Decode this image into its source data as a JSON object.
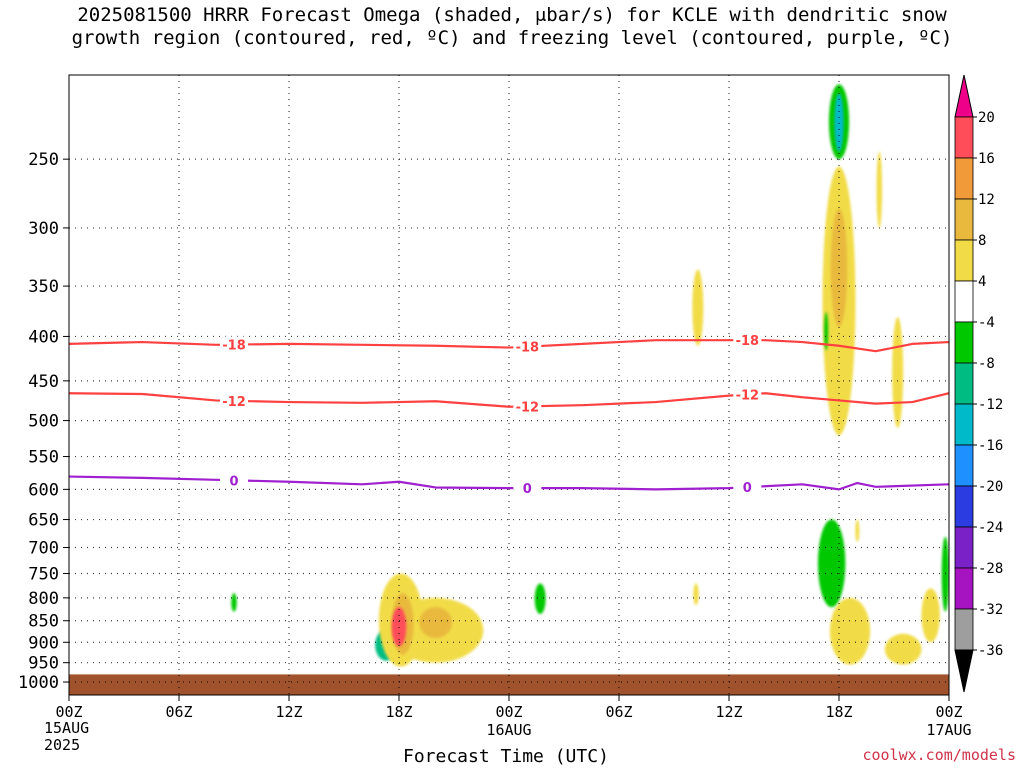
{
  "title_line1": "2025081500 HRRR Forecast Omega (shaded, μbar/s) for KCLE with dendritic snow",
  "title_line2": "growth region (contoured, red, ºC) and freezing level (contoured, purple, ºC)",
  "xlabel": "Forecast Time (UTC)",
  "date_start": "15AUG",
  "year": "2025",
  "watermark": "coolwx.com/models",
  "chart_data": {
    "type": "heatmap",
    "title": "2025081500 HRRR Forecast Omega (shaded, μbar/s) for KCLE with dendritic snow growth region (contoured, red, ºC) and freezing level (contoured, purple, ºC)",
    "xlabel": "Forecast Time (UTC)",
    "ylabel": "",
    "x_unit": "forecast hour",
    "xlim": [
      0,
      48
    ],
    "ylim": [
      1035,
      200
    ],
    "y_scale": "log-pressure (hPa)",
    "x_ticks": [
      {
        "hour": 0,
        "label": "00Z",
        "sub": "15AUG"
      },
      {
        "hour": 6,
        "label": "06Z",
        "sub": ""
      },
      {
        "hour": 12,
        "label": "12Z",
        "sub": ""
      },
      {
        "hour": 18,
        "label": "18Z",
        "sub": ""
      },
      {
        "hour": 24,
        "label": "00Z",
        "sub": "16AUG"
      },
      {
        "hour": 30,
        "label": "06Z",
        "sub": ""
      },
      {
        "hour": 36,
        "label": "12Z",
        "sub": ""
      },
      {
        "hour": 42,
        "label": "18Z",
        "sub": ""
      },
      {
        "hour": 48,
        "label": "00Z",
        "sub": "17AUG"
      }
    ],
    "y_ticks": [
      250,
      300,
      350,
      400,
      450,
      500,
      550,
      600,
      650,
      700,
      750,
      800,
      850,
      900,
      950,
      1000
    ],
    "grid": true,
    "colorbar": {
      "levels": [
        20,
        16,
        12,
        8,
        4,
        -4,
        -8,
        -12,
        -16,
        -20,
        -24,
        -28,
        -32,
        -36
      ],
      "colors": [
        "#ff4d5a",
        "#f09a3a",
        "#e9b93e",
        "#f1dc47",
        "#ffffff",
        "#00c800",
        "#00bc83",
        "#00b9c9",
        "#1e90ff",
        "#2b3de0",
        "#7a22c8",
        "#a614c2",
        "#9e9e9e"
      ],
      "top_arrow_color": "#ee0088",
      "bottom_arrow_color": "#000000"
    },
    "ground": {
      "from_hPa": 980,
      "color": "#a0522d"
    },
    "contours": [
      {
        "label": "-18",
        "color": "#ff4040",
        "x": [
          0,
          4,
          8,
          12,
          16,
          20,
          24,
          28,
          32,
          36,
          38,
          40,
          42,
          44,
          46,
          48
        ],
        "y": [
          408,
          406,
          409,
          408,
          409,
          410,
          412,
          408,
          404,
          404,
          404,
          406,
          410,
          416,
          408,
          406
        ]
      },
      {
        "label": "-12",
        "color": "#ff4040",
        "x": [
          0,
          4,
          8,
          12,
          16,
          20,
          24,
          28,
          32,
          36,
          38,
          40,
          42,
          44,
          46,
          48
        ],
        "y": [
          465,
          466,
          474,
          476,
          477,
          475,
          482,
          480,
          476,
          468,
          465,
          470,
          474,
          478,
          476,
          465
        ]
      },
      {
        "label": "0",
        "color": "#a020d0",
        "x": [
          0,
          4,
          8,
          12,
          16,
          18,
          20,
          24,
          28,
          32,
          36,
          40,
          42,
          43,
          44,
          48
        ],
        "y": [
          580,
          582,
          585,
          588,
          592,
          588,
          597,
          598,
          598,
          600,
          598,
          592,
          600,
          590,
          596,
          592
        ]
      }
    ],
    "shaded_regions": [
      {
        "x_center": 17.3,
        "y_center": 905,
        "x_halfwidth": 0.6,
        "y_span": [
          870,
          945
        ],
        "value": -8
      },
      {
        "x_center": 18.1,
        "y_center": 850,
        "x_halfwidth": 1.2,
        "y_span": [
          750,
          960
        ],
        "value": 8
      },
      {
        "x_center": 20.0,
        "y_center": 870,
        "x_halfwidth": 2.6,
        "y_span": [
          800,
          950
        ],
        "value": 8
      },
      {
        "x_center": 18.2,
        "y_center": 860,
        "x_halfwidth": 0.6,
        "y_span": [
          790,
          930
        ],
        "value": 12
      },
      {
        "x_center": 18.0,
        "y_center": 860,
        "x_halfwidth": 0.4,
        "y_span": [
          820,
          910
        ],
        "value": 18
      },
      {
        "x_center": 20.0,
        "y_center": 860,
        "x_halfwidth": 0.9,
        "y_span": [
          820,
          890
        ],
        "value": 12
      },
      {
        "x_center": 9.0,
        "y_center": 810,
        "x_halfwidth": 0.15,
        "y_span": [
          790,
          830
        ],
        "value": -5
      },
      {
        "x_center": 25.7,
        "y_center": 800,
        "x_halfwidth": 0.3,
        "y_span": [
          770,
          835
        ],
        "value": -6
      },
      {
        "x_center": 34.2,
        "y_center": 795,
        "x_halfwidth": 0.15,
        "y_span": [
          770,
          815
        ],
        "value": 5
      },
      {
        "x_center": 34.3,
        "y_center": 370,
        "x_halfwidth": 0.3,
        "y_span": [
          335,
          410
        ],
        "value": 6
      },
      {
        "x_center": 42.0,
        "y_center": 225,
        "x_halfwidth": 0.55,
        "y_span": [
          205,
          250
        ],
        "value": -6
      },
      {
        "x_center": 42.0,
        "y_center": 225,
        "x_halfwidth": 0.25,
        "y_span": [
          210,
          245
        ],
        "value": -12
      },
      {
        "x_center": 42.0,
        "y_center": 400,
        "x_halfwidth": 0.9,
        "y_span": [
          255,
          520
        ],
        "value": 5
      },
      {
        "x_center": 42.0,
        "y_center": 320,
        "x_halfwidth": 0.45,
        "y_span": [
          285,
          390
        ],
        "value": 9
      },
      {
        "x_center": 41.3,
        "y_center": 395,
        "x_halfwidth": 0.1,
        "y_span": [
          375,
          415
        ],
        "value": -5
      },
      {
        "x_center": 41.6,
        "y_center": 735,
        "x_halfwidth": 0.75,
        "y_span": [
          650,
          820
        ],
        "value": -6
      },
      {
        "x_center": 44.2,
        "y_center": 270,
        "x_halfwidth": 0.15,
        "y_span": [
          245,
          300
        ],
        "value": 5
      },
      {
        "x_center": 45.2,
        "y_center": 440,
        "x_halfwidth": 0.3,
        "y_span": [
          380,
          510
        ],
        "value": 5
      },
      {
        "x_center": 42.6,
        "y_center": 880,
        "x_halfwidth": 1.1,
        "y_span": [
          800,
          955
        ],
        "value": 5
      },
      {
        "x_center": 45.5,
        "y_center": 910,
        "x_halfwidth": 1.0,
        "y_span": [
          880,
          955
        ],
        "value": 5
      },
      {
        "x_center": 47.8,
        "y_center": 740,
        "x_halfwidth": 0.2,
        "y_span": [
          680,
          830
        ],
        "value": -6
      },
      {
        "x_center": 47.0,
        "y_center": 850,
        "x_halfwidth": 0.5,
        "y_span": [
          780,
          900
        ],
        "value": 5
      },
      {
        "x_center": 43.0,
        "y_center": 670,
        "x_halfwidth": 0.06,
        "y_span": [
          650,
          690
        ],
        "value": 5
      }
    ]
  }
}
